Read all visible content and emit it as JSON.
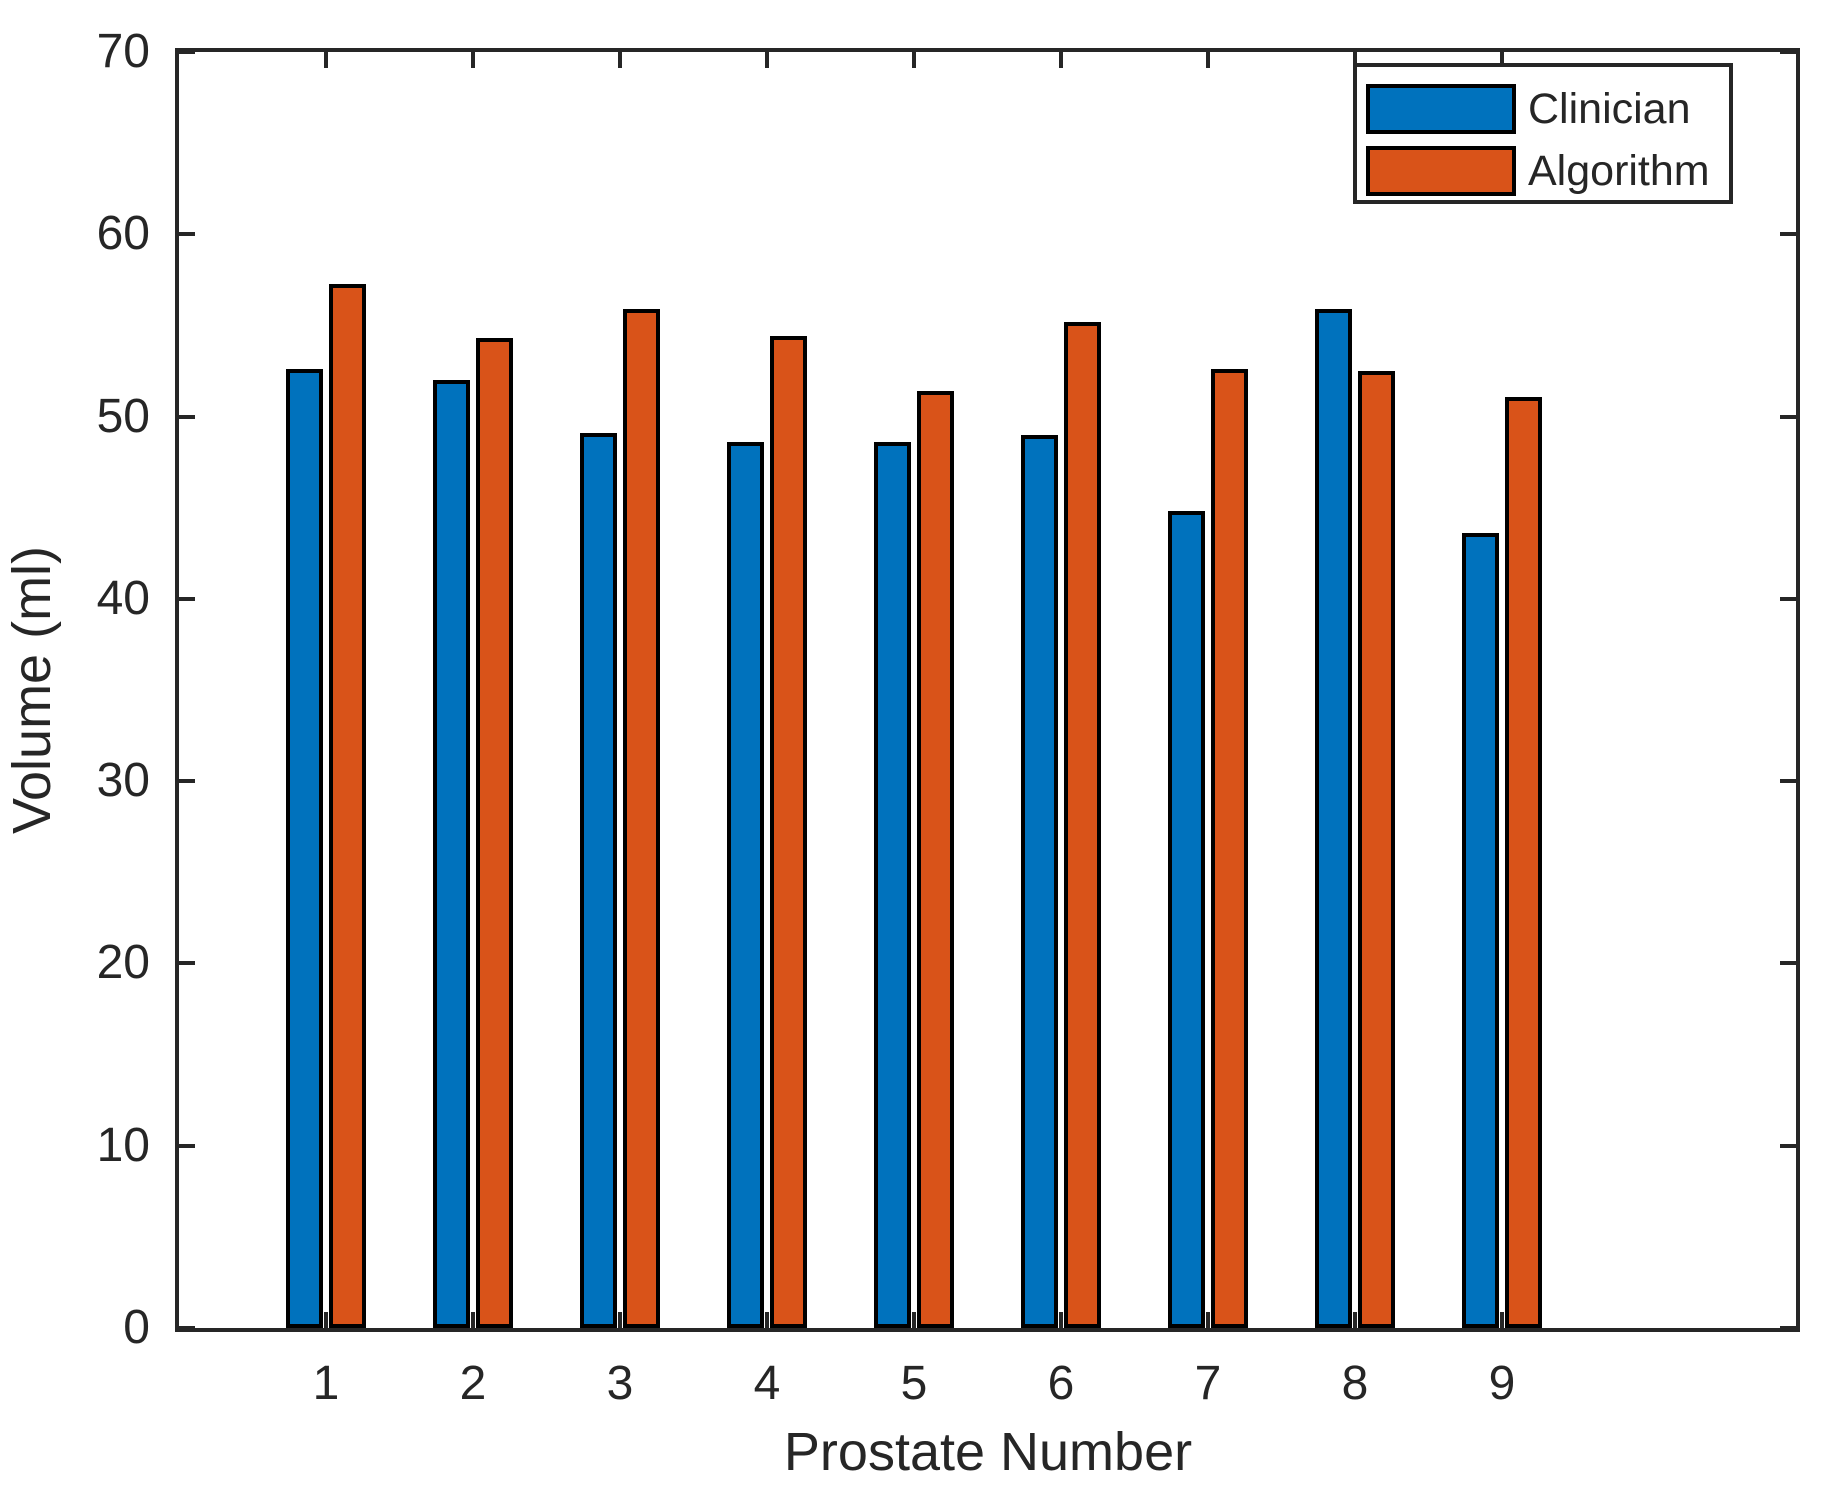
{
  "chart_data": {
    "type": "bar",
    "title": "",
    "xlabel": "Prostate Number",
    "ylabel": "Volume (ml)",
    "categories": [
      1,
      2,
      3,
      4,
      5,
      6,
      7,
      8,
      9
    ],
    "series": [
      {
        "name": "Clinician",
        "color": "#0072BD",
        "values": [
          52.6,
          52.0,
          49.1,
          48.6,
          48.6,
          49.0,
          44.8,
          55.9,
          43.6
        ]
      },
      {
        "name": "Algorithm",
        "color": "#D95319",
        "values": [
          57.3,
          54.3,
          55.9,
          54.4,
          51.4,
          55.2,
          52.6,
          52.5,
          51.1
        ]
      }
    ],
    "ylim": [
      0,
      70
    ],
    "yticks": [
      0,
      10,
      20,
      30,
      40,
      50,
      60,
      70
    ],
    "xlim": [
      0,
      11
    ],
    "grid": false,
    "legend": {
      "position": "top-right",
      "entries": [
        "Clinician",
        "Algorithm"
      ]
    },
    "bar_edge_color": "#000000",
    "axis_color": "#262626",
    "background_color": "#ffffff"
  }
}
